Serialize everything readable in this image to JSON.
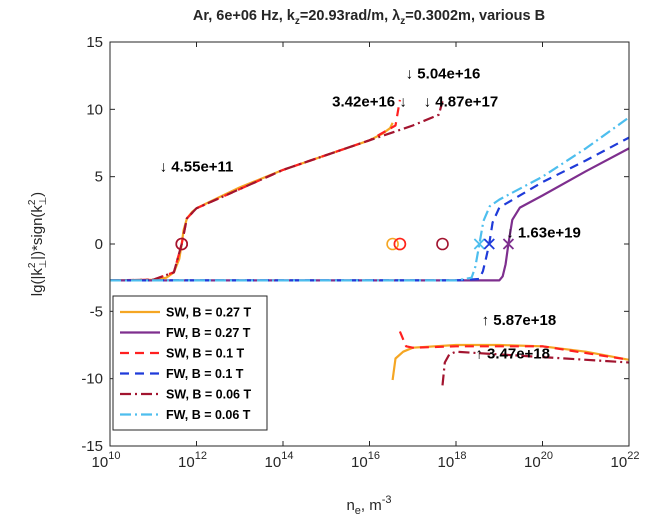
{
  "chart_data": {
    "type": "line",
    "title": "Ar, 6e+06 Hz, k_z=20.93rad/m, λ_z=0.3002m, various B",
    "title_parts": {
      "prefix": "Ar, 6e+06 Hz, k",
      "kz_sub": "z",
      "kz_value": "=20.93rad/m, ",
      "lambda_symbol": "λ",
      "lz_sub": "z",
      "lz_value": "=0.3002m, various B"
    },
    "xlabel": "n_e, m^-3",
    "xlabel_parts": {
      "base": "n",
      "sub": "e",
      "unit": ", m",
      "sup": "-3"
    },
    "ylabel": "lg(|k⊥²|)*sign(k⊥²)",
    "ylabel_parts": {
      "a": "lg(|k",
      "sup1": "2",
      "sub1": "⊥",
      "b": "|)*sign(k",
      "sup2": "2",
      "sub2": "⊥",
      "c": ")"
    },
    "x_scale": "log",
    "xlim": [
      10000000000.0,
      1e+22
    ],
    "ylim": [
      -15,
      15
    ],
    "x_ticks": [
      {
        "base": "10",
        "exp": "10"
      },
      {
        "base": "10",
        "exp": "12"
      },
      {
        "base": "10",
        "exp": "14"
      },
      {
        "base": "10",
        "exp": "16"
      },
      {
        "base": "10",
        "exp": "18"
      },
      {
        "base": "10",
        "exp": "20"
      },
      {
        "base": "10",
        "exp": "22"
      }
    ],
    "y_ticks": [
      "-15",
      "-10",
      "-5",
      "0",
      "5",
      "10",
      "15"
    ],
    "grid": false,
    "legend_position": "bottom-left",
    "series": [
      {
        "name": "SW, B = 0.27 T",
        "color": "#F5A623",
        "style": "solid",
        "segments": [
          [
            [
              10000000000.0,
              -2.7
            ],
            [
              30000000000.0,
              -2.7
            ],
            [
              100000000000.0,
              -2.65
            ],
            [
              200000000000.0,
              -2.5
            ],
            [
              300000000000.0,
              -2.1
            ],
            [
              400000000000.0,
              -1.1
            ],
            [
              455000000000.0,
              0
            ],
            [
              500000000000.0,
              1.0
            ],
            [
              600000000000.0,
              1.9
            ],
            [
              800000000000.0,
              2.4
            ],
            [
              1000000000000.0,
              2.65
            ],
            [
              3000000000000.0,
              3.4
            ],
            [
              10000000000000.0,
              4.2
            ],
            [
              100000000000000.0,
              5.5
            ],
            [
              1000000000000000.0,
              6.6
            ],
            [
              1e+16,
              7.7
            ],
            [
              2e+16,
              8.2
            ],
            [
              3e+16,
              8.6
            ],
            [
              3.42e+16,
              9.0
            ]
          ],
          [
            [
              3.42e+16,
              -10.1
            ],
            [
              4e+16,
              -8.5
            ],
            [
              6e+16,
              -8.0
            ],
            [
              1e+17,
              -7.7
            ],
            [
              1e+18,
              -7.5
            ],
            [
              1e+19,
              -7.5
            ],
            [
              1e+20,
              -7.6
            ],
            [
              1e+21,
              -8.0
            ],
            [
              1e+22,
              -8.6
            ]
          ]
        ]
      },
      {
        "name": "FW, B = 0.27 T",
        "color": "#7E2F8E",
        "style": "solid",
        "segments": [
          [
            [
              10000000000.0,
              -2.7
            ],
            [
              1e+18,
              -2.7
            ],
            [
              1e+19,
              -2.7
            ],
            [
              1.2e+19,
              -2.4
            ],
            [
              1.4e+19,
              -1.5
            ],
            [
              1.63e+19,
              0
            ],
            [
              2e+19,
              1.8
            ],
            [
              3e+19,
              2.7
            ],
            [
              1e+20,
              3.6
            ],
            [
              1e+21,
              5.4
            ],
            [
              1e+22,
              7.1
            ]
          ]
        ]
      },
      {
        "name": "SW, B = 0.1 T",
        "color": "#FF2020",
        "style": "dashed",
        "segments": [
          [
            [
              10000000000.0,
              -2.7
            ],
            [
              100000000000.0,
              -2.65
            ],
            [
              300000000000.0,
              -2.1
            ],
            [
              455000000000.0,
              0
            ],
            [
              600000000000.0,
              1.9
            ],
            [
              1000000000000.0,
              2.65
            ],
            [
              100000000000000.0,
              5.5
            ],
            [
              1e+16,
              7.7
            ],
            [
              4e+16,
              8.8
            ],
            [
              5.04e+16,
              10.7
            ]
          ],
          [
            [
              5.04e+16,
              -6.5
            ],
            [
              7e+16,
              -7.6
            ],
            [
              1e+17,
              -7.7
            ],
            [
              1e+18,
              -7.6
            ],
            [
              1e+20,
              -7.6
            ],
            [
              1e+22,
              -8.6
            ]
          ]
        ]
      },
      {
        "name": "FW, B = 0.1 T",
        "color": "#1F3BD9",
        "style": "dashed",
        "segments": [
          [
            [
              10000000000.0,
              -2.7
            ],
            [
              1e+18,
              -2.7
            ],
            [
              3.5e+18,
              -2.6
            ],
            [
              4.2e+18,
              -2.0
            ],
            [
              5e+18,
              -1.0
            ],
            [
              5.87e+18,
              0
            ],
            [
              7e+18,
              1.6
            ],
            [
              1e+19,
              2.7
            ],
            [
              1e+20,
              4.6
            ],
            [
              1e+21,
              6.2
            ],
            [
              1e+22,
              7.9
            ]
          ]
        ]
      },
      {
        "name": "SW, B = 0.06 T",
        "color": "#A2142F",
        "style": "dashdot",
        "segments": [
          [
            [
              10000000000.0,
              -2.7
            ],
            [
              100000000000.0,
              -2.65
            ],
            [
              300000000000.0,
              -2.1
            ],
            [
              455000000000.0,
              0
            ],
            [
              600000000000.0,
              1.9
            ],
            [
              1000000000000.0,
              2.65
            ],
            [
              100000000000000.0,
              5.5
            ],
            [
              1e+16,
              7.7
            ],
            [
              1e+17,
              8.8
            ],
            [
              4e+17,
              9.6
            ],
            [
              4.87e+17,
              10.6
            ]
          ],
          [
            [
              4.87e+17,
              -10.5
            ],
            [
              5.5e+17,
              -8.8
            ],
            [
              7e+17,
              -8.2
            ],
            [
              1e+18,
              -8.0
            ],
            [
              1e+19,
              -8.2
            ],
            [
              1e+20,
              -8.4
            ],
            [
              1e+22,
              -8.8
            ]
          ]
        ]
      },
      {
        "name": "FW, B = 0.06 T",
        "color": "#4DBEEE",
        "style": "dashdot",
        "segments": [
          [
            [
              10000000000.0,
              -2.7
            ],
            [
              1e+18,
              -2.7
            ],
            [
              2.3e+18,
              -2.5
            ],
            [
              2.8e+18,
              -1.7
            ],
            [
              3.47e+18,
              0
            ],
            [
              4.3e+18,
              1.7
            ],
            [
              6e+18,
              2.8
            ],
            [
              1e+19,
              3.3
            ],
            [
              1e+20,
              5.0
            ],
            [
              1e+21,
              7.1
            ],
            [
              1e+22,
              9.4
            ]
          ]
        ]
      }
    ],
    "circle_markers": [
      {
        "x": 455000000000.0,
        "y": 0,
        "color": "#FF2020"
      },
      {
        "x": 455000000000.0,
        "y": 0,
        "color": "#A2142F"
      },
      {
        "x": 3.42e+16,
        "y": 0,
        "color": "#F5A623"
      },
      {
        "x": 5.04e+16,
        "y": 0,
        "color": "#F5A623"
      },
      {
        "x": 5.04e+16,
        "y": 0,
        "color": "#FF2020"
      },
      {
        "x": 4.87e+17,
        "y": 0,
        "color": "#A2142F"
      }
    ],
    "cross_markers": [
      {
        "x": 3.47e+18,
        "y": 0,
        "color": "#4DBEEE"
      },
      {
        "x": 5.87e+18,
        "y": 0,
        "color": "#1F3BD9"
      },
      {
        "x": 1.63e+19,
        "y": 0,
        "color": "#7E2F8E"
      }
    ],
    "annotations": [
      {
        "text": "↓ 4.55e+11",
        "x": 1000000000000.0,
        "y": 5.4,
        "anchor": "middle"
      },
      {
        "text": "3.42e+16 ↓",
        "x": 1e+16,
        "y": 10.2,
        "anchor": "middle"
      },
      {
        "text": "↓ 5.04e+16",
        "x": 5e+17,
        "y": 12.3,
        "anchor": "middle"
      },
      {
        "text": "↓ 4.87e+17",
        "x": 1.3e+18,
        "y": 10.2,
        "anchor": "middle"
      },
      {
        "text": "↓ 1.63e+19",
        "x": 1.45e+19,
        "y": 0.5,
        "anchor": "start"
      },
      {
        "text": "↑ 5.87e+18",
        "x": 3.9e+18,
        "y": -6.0,
        "anchor": "start"
      },
      {
        "text": "↑ 3.47e+18",
        "x": 2.8e+18,
        "y": -8.5,
        "anchor": "start"
      }
    ]
  }
}
